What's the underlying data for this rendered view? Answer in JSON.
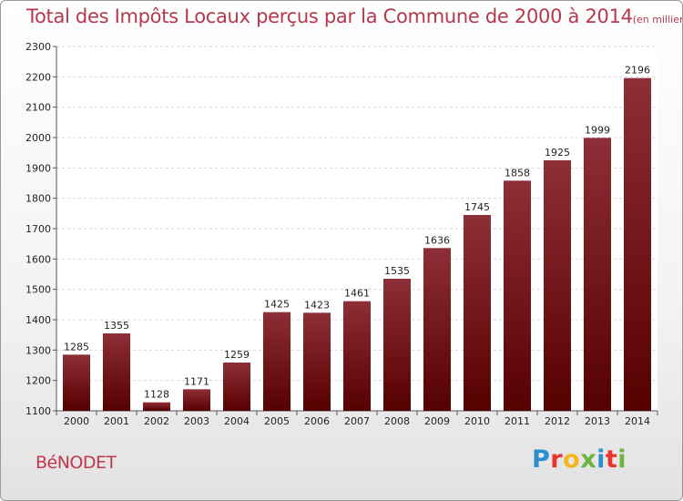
{
  "title": "Total des Impôts Locaux perçus par la Commune de 2000 à 2014",
  "subtitle": "(en milliers d'€)",
  "commune": "BéNODET",
  "logo": {
    "letters": [
      "P",
      "r",
      "o",
      "x",
      "i",
      "t",
      "i"
    ],
    "colors": [
      "#2a8fd0",
      "#e8342c",
      "#f5b51c",
      "#6cb33f",
      "#2a8fd0",
      "#e8342c",
      "#6cb33f"
    ]
  },
  "colors": {
    "bar_top": "#8e2e36",
    "bar_bottom": "#560000",
    "title": "#b5384c"
  },
  "chart_data": {
    "type": "bar",
    "categories": [
      "2000",
      "2001",
      "2002",
      "2003",
      "2004",
      "2005",
      "2006",
      "2007",
      "2008",
      "2009",
      "2010",
      "2011",
      "2012",
      "2013",
      "2014"
    ],
    "values": [
      1285,
      1355,
      1128,
      1171,
      1259,
      1425,
      1423,
      1461,
      1535,
      1636,
      1745,
      1858,
      1925,
      1999,
      2196
    ],
    "title": "Total des Impôts Locaux perçus par la Commune de 2000 à 2014",
    "xlabel": "",
    "ylabel": "",
    "ylim": [
      1100,
      2300
    ],
    "yticks": [
      1100,
      1200,
      1300,
      1400,
      1500,
      1600,
      1700,
      1800,
      1900,
      2000,
      2100,
      2200,
      2300
    ],
    "grid": true,
    "legend": "none"
  }
}
